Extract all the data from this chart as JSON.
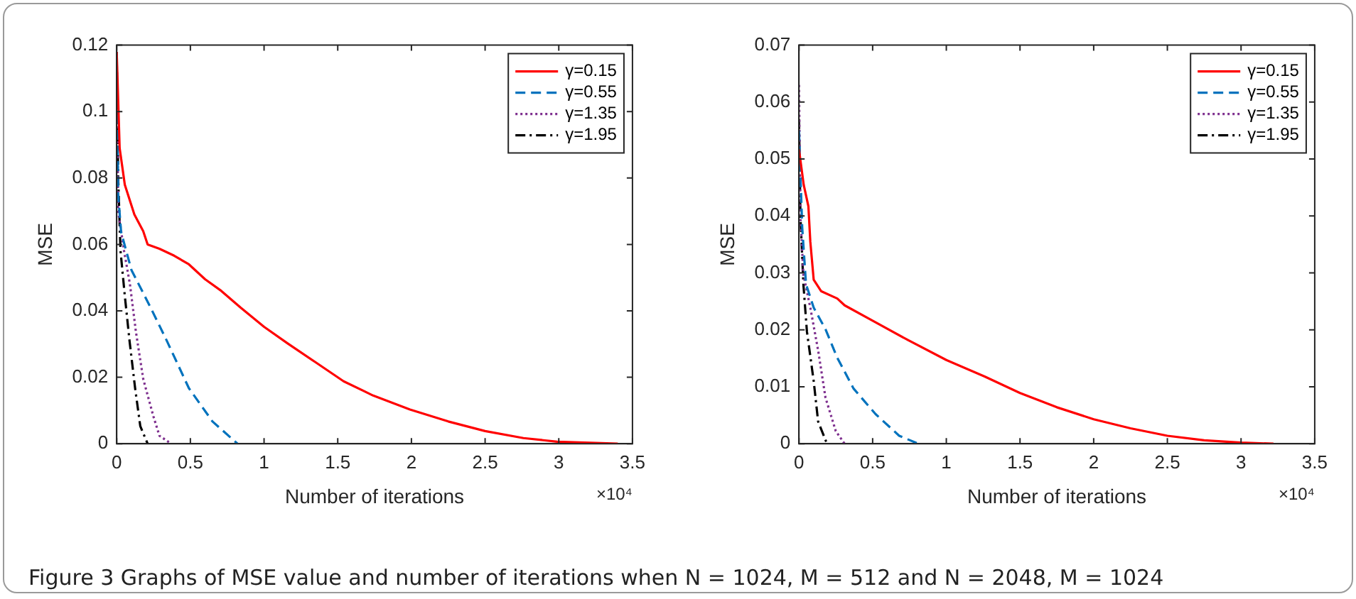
{
  "chart_data": [
    {
      "type": "line",
      "xlabel": "Number of iterations",
      "ylabel": "MSE",
      "xlim": [
        0,
        3.5
      ],
      "xticks": [
        0,
        0.5,
        1,
        1.5,
        2,
        2.5,
        3,
        3.5
      ],
      "ylim": [
        0,
        0.12
      ],
      "yticks": [
        0,
        0.02,
        0.04,
        0.06,
        0.08,
        0.1,
        0.12
      ],
      "grid": false,
      "legend": "top right",
      "marker": "none",
      "annotations": [
        "×10⁴"
      ],
      "series": [
        {
          "name": "γ=0.15",
          "color": "#ff0000",
          "line_style": "solid",
          "x": [
            0,
            0.02,
            0.055,
            0.12,
            0.18,
            0.21,
            0.29,
            0.39,
            0.49,
            0.6,
            0.71,
            0.84,
            1.0,
            1.16,
            1.35,
            1.54,
            1.74,
            1.99,
            2.25,
            2.5,
            2.76,
            2.99,
            3.4
          ],
          "values": [
            0.118,
            0.089,
            0.078,
            0.069,
            0.064,
            0.06,
            0.0587,
            0.0566,
            0.054,
            0.0495,
            0.046,
            0.041,
            0.0352,
            0.0302,
            0.0245,
            0.0188,
            0.0145,
            0.0103,
            0.0067,
            0.0038,
            0.0017,
            0.0006,
            0
          ]
        },
        {
          "name": "γ=0.55",
          "color": "#0072bd",
          "line_style": "dashed",
          "x": [
            0,
            0.01,
            0.03,
            0.1,
            0.23,
            0.34,
            0.49,
            0.65,
            0.82
          ],
          "values": [
            0.118,
            0.075,
            0.0637,
            0.0523,
            0.041,
            0.031,
            0.0167,
            0.0067,
            0
          ]
        },
        {
          "name": "γ=1.35",
          "color": "#7e2f8e",
          "line_style": "dotted",
          "x": [
            0,
            0.01,
            0.05,
            0.09,
            0.13,
            0.18,
            0.25,
            0.29,
            0.37
          ],
          "values": [
            0.118,
            0.07,
            0.058,
            0.048,
            0.0338,
            0.0195,
            0.0081,
            0.0024,
            0
          ]
        },
        {
          "name": "γ=1.95",
          "color": "#000000",
          "line_style": "dashdot",
          "x": [
            0,
            0.01,
            0.026,
            0.054,
            0.087,
            0.125,
            0.16,
            0.21
          ],
          "values": [
            0.118,
            0.08,
            0.058,
            0.045,
            0.031,
            0.0167,
            0.0053,
            0
          ]
        }
      ]
    },
    {
      "type": "line",
      "xlabel": "Number of iterations",
      "ylabel": "MSE",
      "xlim": [
        0,
        3.5
      ],
      "xticks": [
        0,
        0.5,
        1,
        1.5,
        2,
        2.5,
        3,
        3.5
      ],
      "ylim": [
        0,
        0.07
      ],
      "yticks": [
        0,
        0.01,
        0.02,
        0.03,
        0.04,
        0.05,
        0.06,
        0.07
      ],
      "grid": false,
      "legend": "top right",
      "marker": "none",
      "annotations": [
        "×10⁴",
        "Figure 3  Graphs of MSE value and number of iterations when N = 1024, M = 512 and N = 2048, M = 1024"
      ],
      "series": [
        {
          "name": "γ=0.15",
          "color": "#ff0000",
          "line_style": "solid",
          "x": [
            0,
            0.032,
            0.064,
            0.077,
            0.1,
            0.15,
            0.26,
            0.31,
            0.5,
            0.74,
            1.0,
            1.26,
            1.5,
            1.75,
            2.0,
            2.25,
            2.5,
            2.75,
            3.0,
            3.22
          ],
          "values": [
            0.0517,
            0.0455,
            0.0417,
            0.0355,
            0.0288,
            0.0268,
            0.0255,
            0.0243,
            0.0216,
            0.0182,
            0.0147,
            0.0118,
            0.0089,
            0.0064,
            0.0043,
            0.0027,
            0.0014,
            0.0006,
            0.0002,
            0
          ]
        },
        {
          "name": "γ=0.55",
          "color": "#0072bd",
          "line_style": "dashed",
          "x": [
            0,
            0.022,
            0.048,
            0.1,
            0.18,
            0.26,
            0.37,
            0.52,
            0.68,
            0.81
          ],
          "values": [
            0.055,
            0.038,
            0.028,
            0.0239,
            0.0201,
            0.0151,
            0.0097,
            0.0052,
            0.0014,
            0
          ]
        },
        {
          "name": "γ=1.35",
          "color": "#7e2f8e",
          "line_style": "dotted",
          "x": [
            0,
            0.01,
            0.03,
            0.077,
            0.13,
            0.18,
            0.25,
            0.31
          ],
          "values": [
            0.063,
            0.04,
            0.0297,
            0.0239,
            0.0164,
            0.0081,
            0.0022,
            0
          ]
        },
        {
          "name": "γ=1.95",
          "color": "#000000",
          "line_style": "dashdot",
          "x": [
            0,
            0.01,
            0.03,
            0.054,
            0.1,
            0.13,
            0.19
          ],
          "values": [
            0.057,
            0.04,
            0.028,
            0.0197,
            0.011,
            0.0039,
            0
          ]
        }
      ]
    }
  ]
}
